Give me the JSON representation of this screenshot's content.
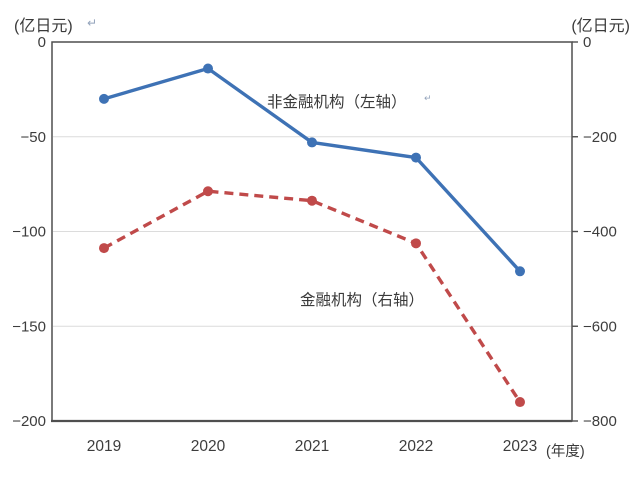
{
  "chart_data": {
    "type": "line",
    "title": "",
    "x_categories": [
      "2019",
      "2020",
      "2021",
      "2022",
      "2023"
    ],
    "x_axis_note": "(年度)",
    "left_axis": {
      "unit": "(亿日元)",
      "ticks": [
        "0",
        "−50",
        "−100",
        "−150",
        "−200"
      ],
      "range": [
        0,
        -200
      ]
    },
    "right_axis": {
      "unit": "(亿日元)",
      "ticks": [
        "0",
        "−200",
        "−400",
        "−600",
        "−800"
      ],
      "range": [
        0,
        -800
      ]
    },
    "grid": true,
    "legend": "inline-annotations",
    "series": [
      {
        "name": "非金融机构（左轴）",
        "axis": "left",
        "style": "solid",
        "color": "#3E72B5",
        "values": [
          -30,
          -14,
          -53,
          -61,
          -121
        ]
      },
      {
        "name": "金融机构（右轴）",
        "axis": "right",
        "style": "dashed",
        "color": "#C04A4A",
        "values": [
          -435,
          -315,
          -335,
          -425,
          -760
        ]
      }
    ]
  },
  "decorations": {
    "return_mark": "↵"
  }
}
